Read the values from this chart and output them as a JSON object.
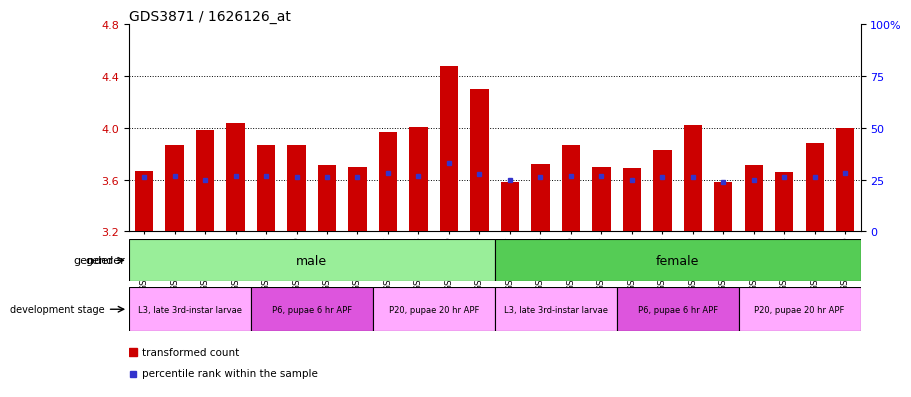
{
  "title": "GDS3871 / 1626126_at",
  "samples": [
    "GSM572821",
    "GSM572822",
    "GSM572823",
    "GSM572824",
    "GSM572829",
    "GSM572830",
    "GSM572831",
    "GSM572832",
    "GSM572837",
    "GSM572838",
    "GSM572839",
    "GSM572840",
    "GSM572817",
    "GSM572818",
    "GSM572819",
    "GSM572820",
    "GSM572825",
    "GSM572826",
    "GSM572827",
    "GSM572828",
    "GSM572833",
    "GSM572834",
    "GSM572835",
    "GSM572836"
  ],
  "bar_values": [
    3.67,
    3.87,
    3.98,
    4.04,
    3.87,
    3.87,
    3.71,
    3.7,
    3.97,
    4.01,
    4.48,
    4.3,
    3.58,
    3.72,
    3.87,
    3.7,
    3.69,
    3.83,
    4.02,
    3.58,
    3.71,
    3.66,
    3.88,
    4.0
  ],
  "blue_dot_values": [
    3.62,
    3.63,
    3.6,
    3.63,
    3.63,
    3.62,
    3.62,
    3.62,
    3.65,
    3.63,
    3.73,
    3.64,
    3.6,
    3.62,
    3.63,
    3.63,
    3.6,
    3.62,
    3.62,
    3.58,
    3.6,
    3.62,
    3.62,
    3.65
  ],
  "bar_bottom": 3.2,
  "ylim": [
    3.2,
    4.8
  ],
  "yticks_left": [
    3.2,
    3.6,
    4.0,
    4.4,
    4.8
  ],
  "ytick_right_labels": [
    "0",
    "25",
    "50",
    "75",
    "100%"
  ],
  "ytick_right_positions": [
    3.2,
    3.6,
    4.0,
    4.4,
    4.8
  ],
  "hlines": [
    3.6,
    4.0,
    4.4
  ],
  "bar_color": "#cc0000",
  "dot_color": "#3333cc",
  "gender_male_color": "#99ee99",
  "gender_female_color": "#55cc55",
  "dev_light_color": "#ffaaff",
  "dev_dark_color": "#dd55dd",
  "dev_groups_male": [
    {
      "label": "L3, late 3rd-instar larvae",
      "start": 0,
      "end": 4,
      "dark": false
    },
    {
      "label": "P6, pupae 6 hr APF",
      "start": 4,
      "end": 8,
      "dark": true
    },
    {
      "label": "P20, pupae 20 hr APF",
      "start": 8,
      "end": 12,
      "dark": false
    }
  ],
  "dev_groups_female": [
    {
      "label": "L3, late 3rd-instar larvae",
      "start": 12,
      "end": 16,
      "dark": false
    },
    {
      "label": "P6, pupae 6 hr APF",
      "start": 16,
      "end": 20,
      "dark": true
    },
    {
      "label": "P20, pupae 20 hr APF",
      "start": 20,
      "end": 24,
      "dark": false
    }
  ]
}
